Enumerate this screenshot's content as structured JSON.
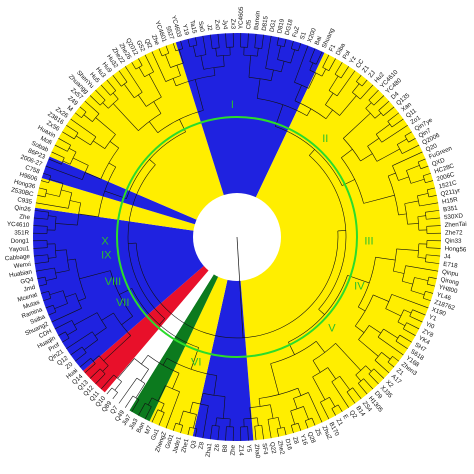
{
  "diagram": {
    "type": "circular-phylogenetic-tree",
    "colors": {
      "group_yellow": "#ffee00",
      "group_blue": "#1f22e0",
      "group_red": "#e8102a",
      "group_green": "#0c7a1e",
      "clade_ring": "#2bdc2b",
      "branch": "#111111"
    },
    "clade_labels": [
      "I",
      "II",
      "III",
      "IV",
      "V",
      "VI",
      "VII",
      "VIII",
      "IX",
      "X"
    ],
    "taxa": [
      "YC4605",
      "Cf5",
      "Banxin",
      "D815",
      "DG1",
      "D819",
      "DG18",
      "FuZ",
      "S1",
      "X200",
      "Bai",
      "Shuang",
      "F1",
      "Diba",
      "Pol",
      "Yz",
      "CC",
      "Z1",
      "ZJ",
      "Hu2",
      "YC4610",
      "YC480",
      "D4",
      "Q135",
      "Xan",
      "Q11",
      "Zo1",
      "Qin7ye",
      "Qin7",
      "Q2006",
      "Q20",
      "FuGreen",
      "QXD",
      "HC28C",
      "2006C",
      "1521C",
      "Q211yr",
      "H15R",
      "B351",
      "530XD",
      "ZhenTai",
      "Zhe72",
      "Qin33",
      "Hong56",
      "J4",
      "E718",
      "Qinpu",
      "Qirong",
      "YH800",
      "YL46",
      "Z18762",
      "X190",
      "Y1",
      "Yi0",
      "ZY8",
      "YK4",
      "SH7",
      "S618",
      "Y168",
      "Zhen3",
      "Z1",
      "A17",
      "X2",
      "XJ35",
      "D9",
      "H1305",
      "ZS4",
      "B14",
      "Q2",
      "E",
      "Z1",
      "B170",
      "ZhuZ",
      "Z5",
      "Q28",
      "Y16",
      "Z8",
      "D16",
      "Zhe2",
      "Q22",
      "SF4",
      "Zha0",
      "Y5",
      "Z14",
      "Zhe",
      "B8",
      "Z6",
      "Zha1",
      "Z8",
      "Q3",
      "Zhe1",
      "Jade1",
      "Gs01",
      "ZhengZ",
      "Gu1",
      "M7",
      "Ban",
      "Jia3",
      "Jia7",
      "Q49",
      "Q7",
      "Q89",
      "Q10",
      "Q11",
      "Q12",
      "Q13",
      "Q14",
      "Huai",
      "Z0",
      "Q12",
      "Qin21",
      "Prof",
      "Huaqin",
      "CDH",
      "Shuang2",
      "Ssiba",
      "Ramina",
      "Mutas",
      "Mcenat",
      "Jmd",
      "GQ4",
      "Huabian",
      "Wenxi",
      "Cabbage",
      "Yayou1",
      "Dong1",
      "351R",
      "YC4610",
      "Zhe",
      "Qin26",
      "C935",
      "Z530BC",
      "Hong36",
      "H9606",
      "C758",
      "2006-27",
      "86P23",
      "Sobab",
      "Mofi",
      "Huaxin",
      "Zx56",
      "Z3816",
      "Zx26",
      "M",
      "Z49",
      "Zx57",
      "Zhuangg",
      "ShenYu",
      "Hu5",
      "Hu3",
      "Hu9",
      "Hu32",
      "Zhe22",
      "Zhe26",
      "Q2012",
      "G52",
      "Ql2",
      "Zhe",
      "YC4601",
      "5527",
      "YC4603",
      "Y19",
      "Ta15",
      "Sa0",
      "J2",
      "Zx0",
      "Jy4",
      "Zx3"
    ],
    "sectors": [
      {
        "from": 0,
        "to": 20,
        "color": "yellow"
      },
      {
        "from": 20,
        "to": 40,
        "color": "blue"
      },
      {
        "from": 40,
        "to": 110,
        "color": "yellow"
      },
      {
        "from": 110,
        "to": 118,
        "color": "blue"
      },
      {
        "from": 118,
        "to": 124,
        "color": "yellow"
      },
      {
        "from": 124,
        "to": 127,
        "color": "green"
      },
      {
        "from": 127,
        "to": 131,
        "color": "white"
      },
      {
        "from": 131,
        "to": 135,
        "color": "red"
      },
      {
        "from": 135,
        "to": 158,
        "color": "blue"
      },
      {
        "from": 158,
        "to": 162,
        "color": "yellow"
      },
      {
        "from": 162,
        "to": 165,
        "color": "blue"
      },
      {
        "from": 165,
        "to": 178,
        "color": "yellow"
      }
    ]
  }
}
